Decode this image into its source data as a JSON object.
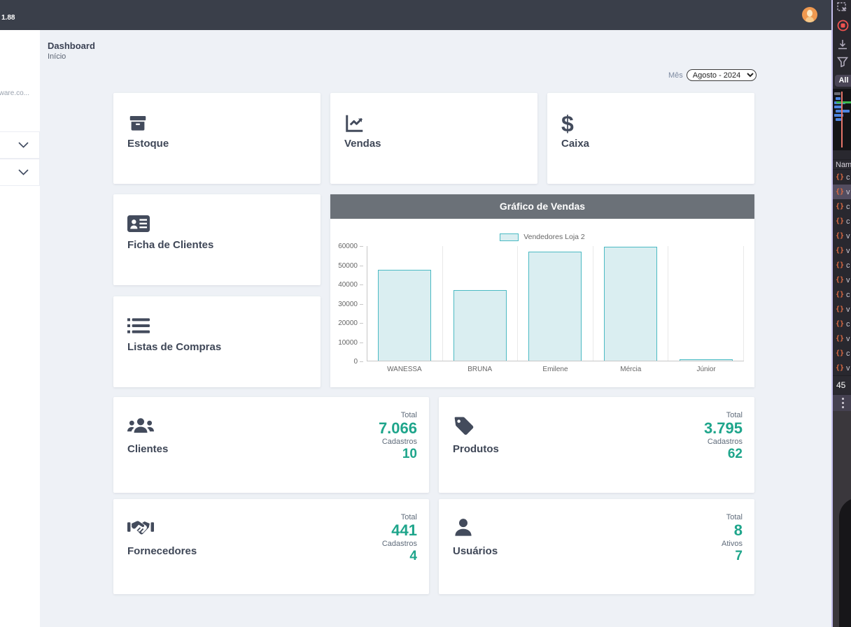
{
  "header": {
    "version": "1.88"
  },
  "sidebar": {
    "truncated_text": "ware.co..."
  },
  "page": {
    "title": "Dashboard",
    "subtitle": "Início"
  },
  "filter": {
    "label": "Mês",
    "selected": "Agosto - 2024"
  },
  "nav_cards": [
    {
      "label": "Estoque",
      "icon": "archive-icon"
    },
    {
      "label": "Vendas",
      "icon": "chart-line-icon"
    },
    {
      "label": "Caixa",
      "icon": "dollar-icon"
    },
    {
      "label": "Ficha de Clientes",
      "icon": "id-card-icon"
    },
    {
      "label": "Listas de Compras",
      "icon": "list-icon"
    }
  ],
  "chart_data": {
    "type": "bar",
    "title": "Gráfico de Vendas",
    "legend": [
      "Vendedores Loja 2"
    ],
    "categories": [
      "WANESSA",
      "BRUNA",
      "Emilene",
      "Mércia",
      "Júnior"
    ],
    "values": [
      47300,
      36800,
      56800,
      59400,
      400
    ],
    "ylim": [
      0,
      60000
    ],
    "yticks": [
      0,
      10000,
      20000,
      30000,
      40000,
      50000,
      60000
    ],
    "xlabel": "",
    "ylabel": "",
    "grid": "vertical",
    "legend_position": "top",
    "bar_fill": "#daeef1",
    "bar_border": "#4bbac3"
  },
  "stat_cards": [
    {
      "label": "Clientes",
      "icon": "users-icon",
      "rows": [
        {
          "label": "Total",
          "value": "7.066"
        },
        {
          "label": "Cadastros",
          "value": "10"
        }
      ]
    },
    {
      "label": "Produtos",
      "icon": "tag-icon",
      "rows": [
        {
          "label": "Total",
          "value": "3.795"
        },
        {
          "label": "Cadastros",
          "value": "62"
        }
      ]
    },
    {
      "label": "Fornecedores",
      "icon": "handshake-icon",
      "rows": [
        {
          "label": "Total",
          "value": "441"
        },
        {
          "label": "Cadastros",
          "value": "4"
        }
      ]
    },
    {
      "label": "Usuários",
      "icon": "user-icon",
      "rows": [
        {
          "label": "Total",
          "value": "8"
        },
        {
          "label": "Ativos",
          "value": "7"
        }
      ]
    }
  ],
  "devtools": {
    "all_label": "All",
    "name_header": "Nam",
    "count": "45",
    "accent": "#e06c43",
    "requests": [
      {
        "name": "c",
        "selected": false
      },
      {
        "name": "v",
        "selected": true
      },
      {
        "name": "c",
        "selected": false
      },
      {
        "name": "c",
        "selected": false
      },
      {
        "name": "v",
        "selected": false
      },
      {
        "name": "v",
        "selected": false
      },
      {
        "name": "c",
        "selected": false
      },
      {
        "name": "v",
        "selected": false
      },
      {
        "name": "c",
        "selected": false
      },
      {
        "name": "v",
        "selected": false
      },
      {
        "name": "c",
        "selected": false
      },
      {
        "name": "v",
        "selected": false
      },
      {
        "name": "c",
        "selected": false
      },
      {
        "name": "v",
        "selected": false
      }
    ]
  },
  "colors": {
    "header_bg": "#3a3f4a",
    "main_bg": "#eef1f6",
    "accent_teal": "#1ea58b",
    "chart_header_bg": "#6b7178",
    "avatar_orange": "#ef9950"
  }
}
